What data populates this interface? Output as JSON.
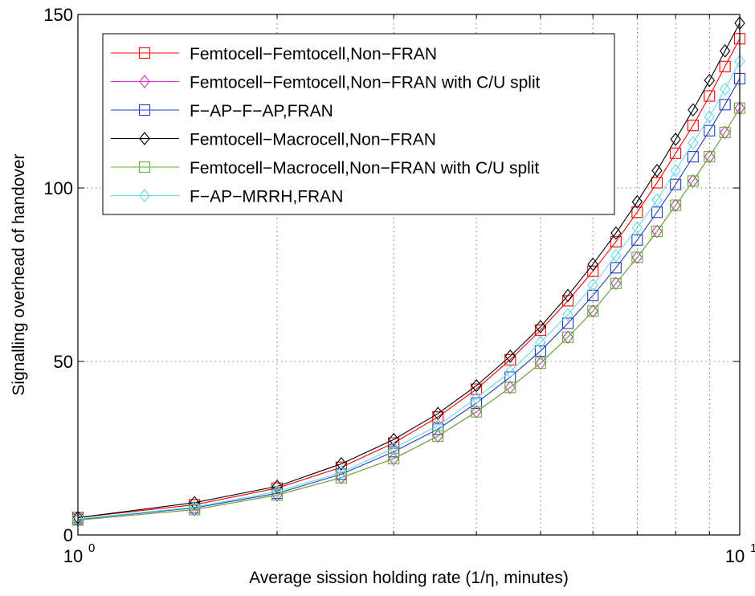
{
  "chart_data": {
    "type": "line",
    "xscale": "log",
    "xlim": [
      1,
      10
    ],
    "ylim": [
      0,
      150
    ],
    "grid": true,
    "legend_position": "top-left",
    "xlabel": "Average sission holding rate (1/η, minutes)",
    "ylabel": "Signalling overhead of handover",
    "x_ticks": [
      {
        "value": 1,
        "base": "10",
        "exp": "0"
      },
      {
        "value": 10,
        "base": "10",
        "exp": "1"
      }
    ],
    "y_ticks": [
      {
        "value": 0,
        "label": "0"
      },
      {
        "value": 50,
        "label": "50"
      },
      {
        "value": 100,
        "label": "100"
      },
      {
        "value": 150,
        "label": "150"
      }
    ],
    "x": [
      1,
      1.5,
      2,
      2.5,
      3,
      3.5,
      4,
      4.5,
      5,
      5.5,
      6,
      6.5,
      7,
      7.5,
      8,
      8.5,
      9,
      9.5,
      10
    ],
    "series": [
      {
        "name": "Femtocell−Femtocell,Non−FRAN",
        "color": "#ff0000",
        "marker": "square",
        "values": [
          5,
          8.7,
          13.5,
          19.5,
          26.5,
          34,
          42,
          50.5,
          59,
          67.5,
          76,
          84.5,
          93,
          101.5,
          110,
          118,
          126.5,
          135,
          143
        ]
      },
      {
        "name": "Femtocell−Femtocell,Non−FRAN with C/U split",
        "color": "#cc33cc",
        "marker": "diamond",
        "values": [
          4.3,
          7.3,
          11.5,
          16.5,
          22,
          28.5,
          35.5,
          42.5,
          49.5,
          57,
          64.5,
          72.5,
          80,
          87.5,
          95,
          102,
          109,
          116,
          123
        ]
      },
      {
        "name": "F−AP−F−AP,FRAN",
        "color": "#1f3fbf",
        "marker": "square",
        "values": [
          4.5,
          7.8,
          12,
          17.5,
          24,
          30.5,
          38,
          45.5,
          53,
          61,
          69,
          77,
          85,
          93,
          101,
          109,
          116.5,
          124,
          131.5
        ]
      },
      {
        "name": "Femtocell−Macrocell,Non−FRAN",
        "color": "#000000",
        "marker": "diamond",
        "values": [
          5,
          9.3,
          14,
          20.5,
          27.5,
          35,
          43,
          51.5,
          60,
          69,
          78,
          87,
          96,
          105,
          114,
          122.5,
          131,
          139.5,
          147.5
        ]
      },
      {
        "name": "Femtocell−Macrocell,Non−FRAN with C/U split",
        "color": "#66b032",
        "marker": "square",
        "values": [
          4.3,
          7.3,
          11.5,
          16.5,
          22,
          28.5,
          35.5,
          42.5,
          49.5,
          57,
          64.5,
          72.5,
          80,
          87.5,
          95,
          102,
          109,
          116,
          123
        ]
      },
      {
        "name": "F−AP−MRRH,FRAN",
        "color": "#66d9e6",
        "marker": "diamond",
        "values": [
          4.6,
          8,
          12.5,
          18,
          25,
          31.5,
          39.5,
          47,
          55.5,
          63.5,
          72,
          80.5,
          88.5,
          96.5,
          105,
          113,
          120.5,
          128.5,
          136.5
        ]
      }
    ]
  }
}
